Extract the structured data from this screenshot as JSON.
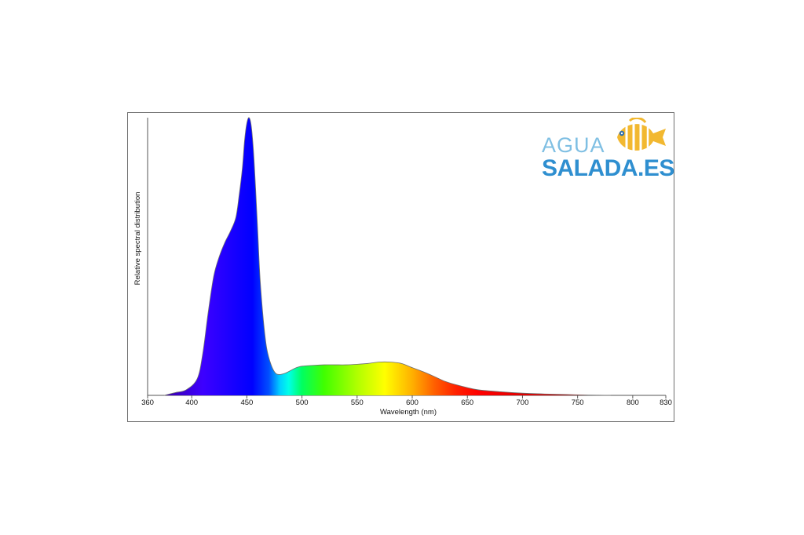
{
  "chart_data": {
    "type": "area",
    "title": "",
    "xlabel": "Wavelength (nm)",
    "ylabel": "Relative spectral distribution",
    "xlim": [
      360,
      830
    ],
    "ylim": [
      0,
      1
    ],
    "x_ticks": [
      360,
      400,
      450,
      500,
      550,
      600,
      650,
      700,
      750,
      800,
      830
    ],
    "grid": false,
    "fill": "visible-spectrum gradient",
    "points": {
      "x": [
        375,
        385,
        395,
        405,
        410,
        415,
        420,
        425,
        430,
        435,
        440,
        443,
        446,
        448,
        450,
        452,
        454,
        456,
        458,
        460,
        462,
        465,
        468,
        472,
        476,
        480,
        485,
        490,
        495,
        500,
        510,
        520,
        530,
        540,
        550,
        560,
        570,
        580,
        590,
        600,
        610,
        620,
        630,
        640,
        650,
        660,
        680,
        700,
        720,
        740,
        760,
        780
      ],
      "y": [
        0.0,
        0.01,
        0.02,
        0.06,
        0.15,
        0.3,
        0.43,
        0.5,
        0.55,
        0.59,
        0.64,
        0.72,
        0.82,
        0.92,
        0.98,
        1.0,
        0.97,
        0.88,
        0.74,
        0.58,
        0.42,
        0.27,
        0.17,
        0.11,
        0.08,
        0.075,
        0.08,
        0.09,
        0.1,
        0.105,
        0.108,
        0.11,
        0.11,
        0.11,
        0.112,
        0.115,
        0.12,
        0.12,
        0.115,
        0.1,
        0.085,
        0.068,
        0.05,
        0.038,
        0.028,
        0.02,
        0.013,
        0.008,
        0.005,
        0.003,
        0.001,
        0.0
      ]
    }
  },
  "logo": {
    "line1": "AGUA",
    "line2": "SALADA.ES",
    "colors": {
      "agua": "#7fbfe3",
      "salada": "#2f8fd0",
      "fish_body": "#f2b830",
      "fish_stripes": "#ffffff"
    },
    "icon": "butterflyfish-icon"
  },
  "style": {
    "frame_color": "#6e6e6e",
    "axis_color": "#555555",
    "curve_outline": "#6e6e6e"
  }
}
